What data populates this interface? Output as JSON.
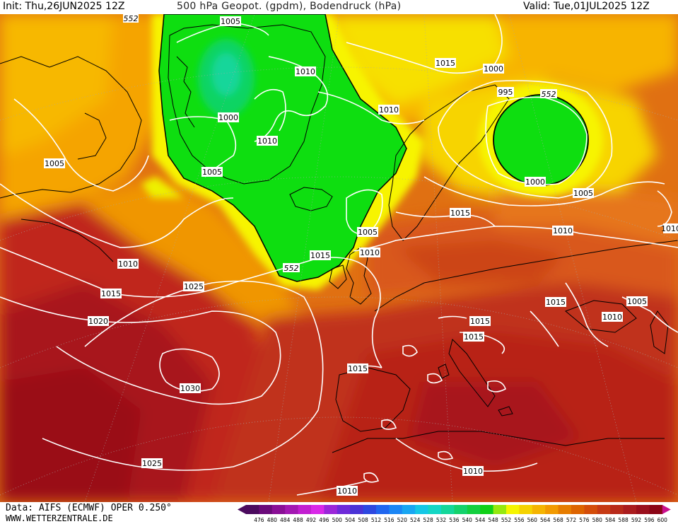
{
  "header": {
    "init": "Init: Thu,26JUN2025 12Z",
    "title": "500 hPa Geopot. (gpdm), Bodendruck (hPa)",
    "valid": "Valid: Tue,01JUL2025 12Z"
  },
  "map": {
    "isobar_labels": [
      "1005",
      "1010",
      "1015",
      "1020",
      "1025",
      "1030",
      "1000",
      "995"
    ],
    "isobars": [
      {
        "value": "1005",
        "label": "1005"
      },
      {
        "value": "1010",
        "label": "1010"
      },
      {
        "value": "1015",
        "label": "1015"
      },
      {
        "value": "1000",
        "label": "1000"
      },
      {
        "value": "995",
        "label": "995"
      },
      {
        "value": "1020",
        "label": "1020"
      },
      {
        "value": "1025",
        "label": "1025"
      },
      {
        "value": "1030",
        "label": "1030"
      }
    ],
    "geopotential_labels": [
      "552",
      "552",
      "552"
    ]
  },
  "footer": {
    "data_source": "Data: AIFS (ECMWF) OPER 0.250°",
    "website": "WWW.WETTERZENTRALE.DE"
  },
  "legend": {
    "ticks": [
      "476",
      "480",
      "484",
      "488",
      "492",
      "496",
      "500",
      "504",
      "508",
      "512",
      "516",
      "520",
      "524",
      "528",
      "532",
      "536",
      "540",
      "544",
      "548",
      "552",
      "556",
      "560",
      "564",
      "568",
      "572",
      "576",
      "580",
      "584",
      "588",
      "592",
      "596",
      "600"
    ],
    "colors": [
      "#4b0a5e",
      "#6b0a7a",
      "#8a0f96",
      "#a318b2",
      "#c21fd1",
      "#d928e8",
      "#9b26d9",
      "#6e2ad9",
      "#4a33d6",
      "#2d48e0",
      "#2066ef",
      "#1b86f5",
      "#18a6f2",
      "#15c7e6",
      "#14d6c4",
      "#14d79a",
      "#14d26c",
      "#13cf3f",
      "#11d018",
      "#96e80f",
      "#f5f500",
      "#f5d200",
      "#f5b400",
      "#f29a00",
      "#e67c00",
      "#dd6400",
      "#d44d0a",
      "#c63a14",
      "#b82a1a",
      "#aa1c1e",
      "#9a0f1c",
      "#8b0516",
      "#c9108e"
    ]
  },
  "colors": {
    "green_low": "#00e000",
    "yellow": "#f7f400",
    "orange": "#f5a200",
    "dark_orange": "#e06010",
    "red": "#c42a12",
    "dark_red": "#a0101a",
    "isobar": "#ffffff",
    "coast": "#000000"
  }
}
